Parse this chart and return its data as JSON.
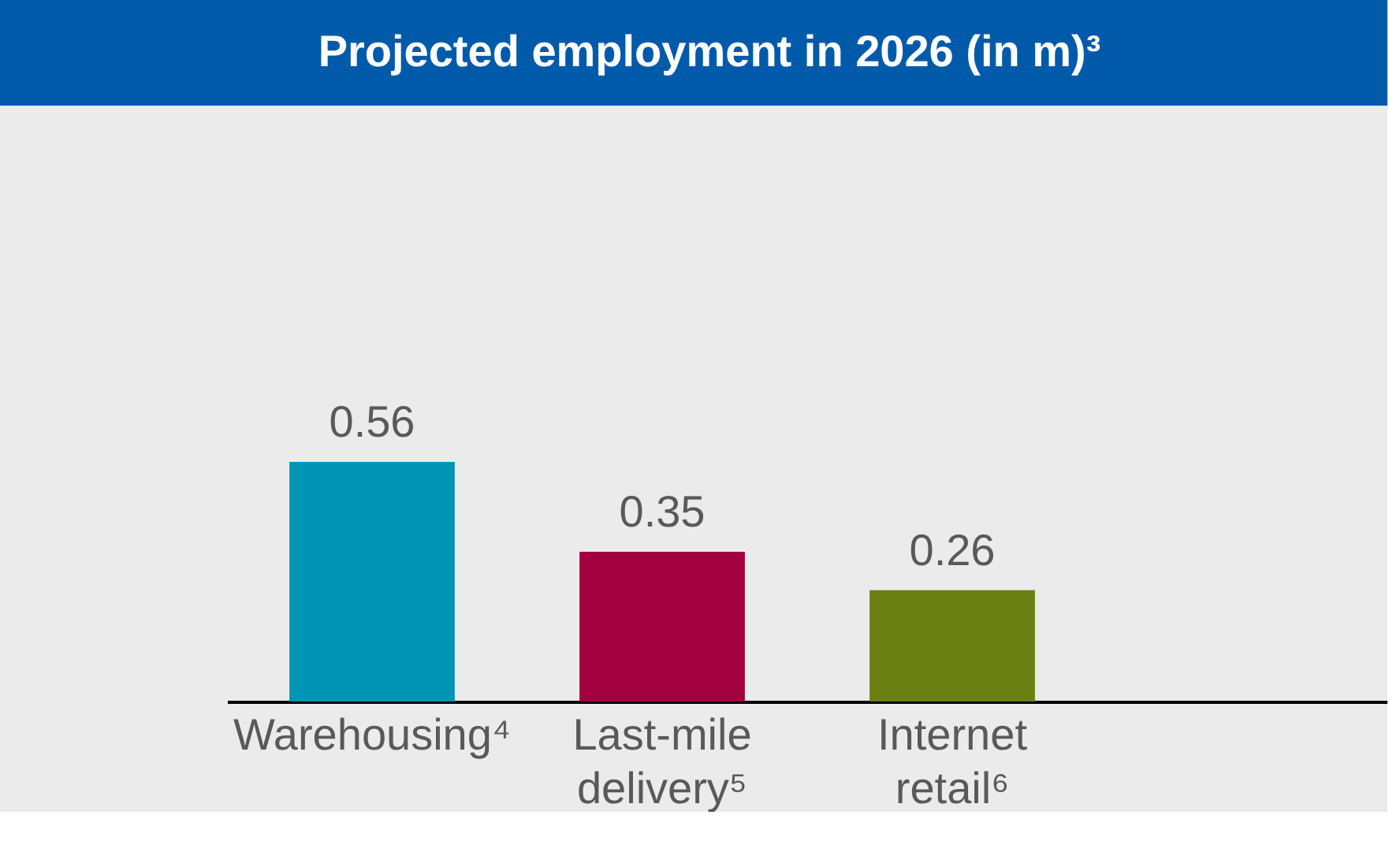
{
  "chart_data": {
    "type": "bar",
    "title": "Projected employment in 2026 (in m)³",
    "categories": [
      "Warehousing⁴",
      "Last-mile delivery⁵",
      "Internet retail⁶",
      null
    ],
    "values": [
      0.56,
      0.35,
      0.26,
      null
    ],
    "colors": [
      "#0095b6",
      "#a3003f",
      "#6b7f12",
      "#ebebeb"
    ],
    "data_labels": true,
    "grid": false,
    "legend": false
  }
}
